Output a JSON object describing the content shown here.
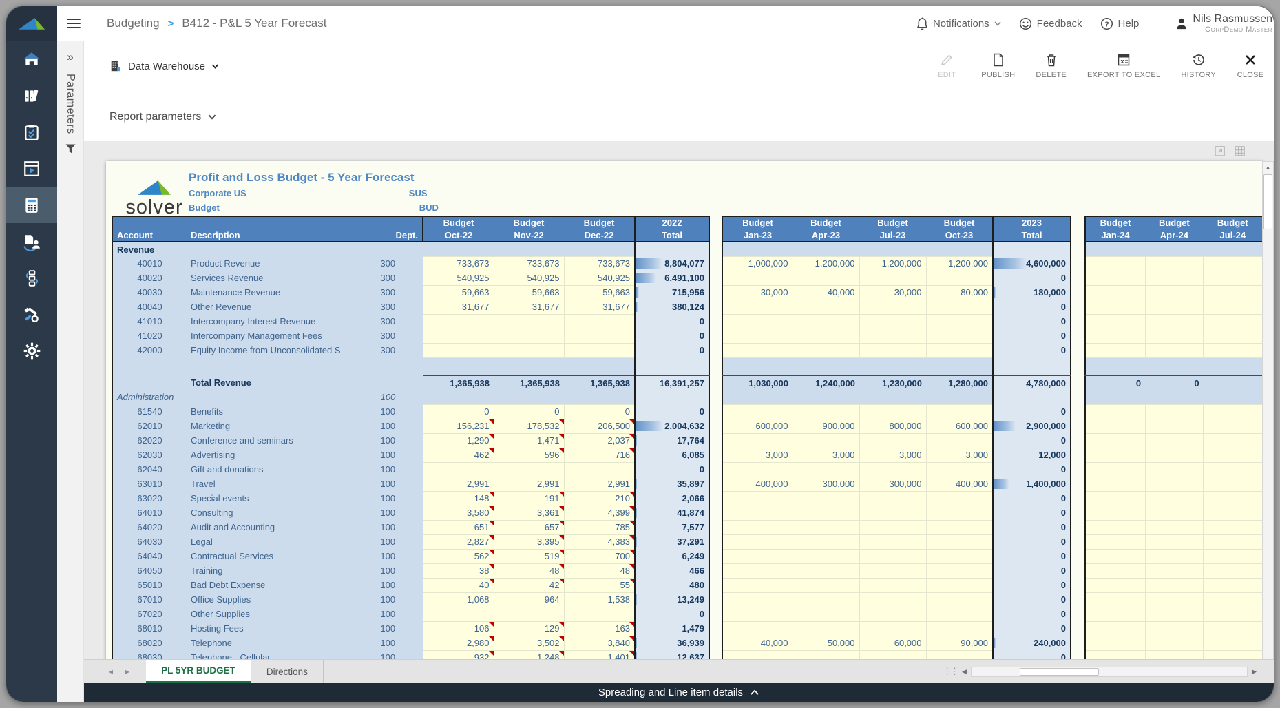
{
  "topbar": {
    "breadcrumb": {
      "section": "Budgeting",
      "separator": ">",
      "page": "B412 - P&L 5 Year Forecast"
    },
    "notifications_label": "Notifications",
    "feedback_label": "Feedback",
    "help_label": "Help",
    "user": {
      "name": "Nils Rasmussen",
      "org": "CorpDemo Master"
    }
  },
  "toolbar": {
    "source_label": "Data Warehouse",
    "actions": [
      {
        "label": "EDIT",
        "icon": "pencil-icon",
        "disabled": true
      },
      {
        "label": "PUBLISH",
        "icon": "publish-page-icon",
        "disabled": false
      },
      {
        "label": "DELETE",
        "icon": "trash-icon",
        "disabled": false
      },
      {
        "label": "EXPORT TO EXCEL",
        "icon": "excel-icon",
        "disabled": false
      },
      {
        "label": "HISTORY",
        "icon": "history-clock-icon",
        "disabled": false
      },
      {
        "label": "CLOSE",
        "icon": "close-x-icon",
        "disabled": false
      }
    ]
  },
  "parameters": {
    "rail_label": "Parameters",
    "expand_glyph": "»",
    "row_label": "Report parameters"
  },
  "sidebar": {
    "items": [
      "home-icon",
      "binders-icon",
      "checklist-icon",
      "report-viewer-icon",
      "calculator-icon",
      "document-user-icon",
      "workflow-icon",
      "tools-icon",
      "settings-gear-icon"
    ],
    "active_index": 4
  },
  "report": {
    "logo_text": "solver",
    "title": "Profit and Loss Budget - 5 Year Forecast",
    "entity_name": "Corporate US",
    "entity_code": "SUS",
    "scenario_name": "Budget",
    "scenario_code": "BUD"
  },
  "sheet_tabs": {
    "active": "PL 5YR BUDGET",
    "other": "Directions"
  },
  "footer": {
    "expander_label": "Spreading and Line item details"
  },
  "table": {
    "left_headers": [
      "Account",
      "Description",
      "Dept."
    ],
    "blocks": [
      {
        "months": [
          [
            "Budget",
            "Oct-22"
          ],
          [
            "Budget",
            "Nov-22"
          ],
          [
            "Budget",
            "Dec-22"
          ]
        ],
        "total": [
          "2022",
          "Total"
        ]
      },
      {
        "months": [
          [
            "Budget",
            "Jan-23"
          ],
          [
            "Budget",
            "Apr-23"
          ],
          [
            "Budget",
            "Jul-23"
          ],
          [
            "Budget",
            "Oct-23"
          ]
        ],
        "total": [
          "2023",
          "Total"
        ]
      },
      {
        "months": [
          [
            "Budget",
            "Jan-24"
          ],
          [
            "Budget",
            "Apr-24"
          ],
          [
            "Budget",
            "Jul-24"
          ]
        ],
        "total": null
      }
    ],
    "rows": [
      {
        "t": "section",
        "label": "Revenue",
        "dept": ""
      },
      {
        "t": "acct",
        "a": "40010",
        "d": "Product Revenue",
        "dept": "300",
        "m22": [
          "733,673",
          "733,673",
          "733,673"
        ],
        "t22": "8,804,077",
        "b22": 36,
        "m23": [
          "1,000,000",
          "1,200,000",
          "1,200,000",
          "1,200,000"
        ],
        "t23": "4,600,000",
        "b23": 42,
        "m24": [
          "",
          "",
          ""
        ]
      },
      {
        "t": "acct",
        "a": "40020",
        "d": "Services Revenue",
        "dept": "300",
        "m22": [
          "540,925",
          "540,925",
          "540,925"
        ],
        "t22": "6,491,100",
        "b22": 27,
        "m23": [
          "",
          "",
          "",
          ""
        ],
        "t23": "0",
        "b23": 0,
        "m24": [
          "",
          "",
          ""
        ]
      },
      {
        "t": "acct",
        "a": "40030",
        "d": "Maintenance Revenue",
        "dept": "300",
        "m22": [
          "59,663",
          "59,663",
          "59,663"
        ],
        "t22": "715,956",
        "b22": 4,
        "m23": [
          "30,000",
          "40,000",
          "30,000",
          "80,000"
        ],
        "t23": "180,000",
        "b23": 2,
        "m24": [
          "",
          "",
          ""
        ]
      },
      {
        "t": "acct",
        "a": "40040",
        "d": "Other Revenue",
        "dept": "300",
        "m22": [
          "31,677",
          "31,677",
          "31,677"
        ],
        "t22": "380,124",
        "b22": 2,
        "m23": [
          "",
          "",
          "",
          ""
        ],
        "t23": "0",
        "b23": 0,
        "m24": [
          "",
          "",
          ""
        ]
      },
      {
        "t": "acct",
        "a": "41010",
        "d": "Intercompany Interest Revenue",
        "dept": "300",
        "m22": [
          "",
          "",
          ""
        ],
        "t22": "0",
        "m23": [
          "",
          "",
          "",
          ""
        ],
        "t23": "0",
        "m24": [
          "",
          "",
          ""
        ]
      },
      {
        "t": "acct",
        "a": "41020",
        "d": "Intercompany Management Fees",
        "dept": "300",
        "m22": [
          "",
          "",
          ""
        ],
        "t22": "0",
        "m23": [
          "",
          "",
          "",
          ""
        ],
        "t23": "0",
        "m24": [
          "",
          "",
          ""
        ]
      },
      {
        "t": "acct",
        "a": "42000",
        "d": "Equity Income from Unconsolidated S",
        "dept": "300",
        "m22": [
          "",
          "",
          ""
        ],
        "t22": "0",
        "m23": [
          "",
          "",
          "",
          ""
        ],
        "t23": "0",
        "m24": [
          "",
          "",
          ""
        ]
      },
      {
        "t": "spacer"
      },
      {
        "t": "total",
        "label": "Total Revenue",
        "m22": [
          "1,365,938",
          "1,365,938",
          "1,365,938"
        ],
        "t22": "16,391,257",
        "m23": [
          "1,030,000",
          "1,240,000",
          "1,230,000",
          "1,280,000"
        ],
        "t23": "4,780,000",
        "m24": [
          "0",
          "0",
          ""
        ]
      },
      {
        "t": "section",
        "label": "Administration",
        "italic": true,
        "dept": "100"
      },
      {
        "t": "acct",
        "a": "61540",
        "d": "Benefits",
        "dept": "100",
        "m22": [
          "0",
          "0",
          "0"
        ],
        "t22": "0",
        "m23": [
          "",
          "",
          "",
          ""
        ],
        "t23": "0",
        "m24": [
          "",
          "",
          ""
        ]
      },
      {
        "t": "acct",
        "a": "62010",
        "d": "Marketing",
        "dept": "100",
        "n": true,
        "m22": [
          "156,231",
          "178,532",
          "206,500"
        ],
        "t22": "2,004,632",
        "b22": 37,
        "m23": [
          "600,000",
          "900,000",
          "800,000",
          "600,000"
        ],
        "t23": "2,900,000",
        "b23": 28,
        "m24": [
          "",
          "",
          ""
        ]
      },
      {
        "t": "acct",
        "a": "62020",
        "d": "Conference and seminars",
        "dept": "100",
        "n": true,
        "m22": [
          "1,290",
          "1,471",
          "2,037"
        ],
        "t22": "17,764",
        "b22": 1,
        "m23": [
          "",
          "",
          "",
          ""
        ],
        "t23": "0",
        "m24": [
          "",
          "",
          ""
        ]
      },
      {
        "t": "acct",
        "a": "62030",
        "d": "Advertising",
        "dept": "100",
        "n": true,
        "m22": [
          "462",
          "596",
          "716"
        ],
        "t22": "6,085",
        "m23": [
          "3,000",
          "3,000",
          "3,000",
          "3,000"
        ],
        "t23": "12,000",
        "m24": [
          "",
          "",
          ""
        ]
      },
      {
        "t": "acct",
        "a": "62040",
        "d": "Gift and donations",
        "dept": "100",
        "m22": [
          "",
          "",
          ""
        ],
        "t22": "0",
        "m23": [
          "",
          "",
          "",
          ""
        ],
        "t23": "0",
        "m24": [
          "",
          "",
          ""
        ]
      },
      {
        "t": "acct",
        "a": "63010",
        "d": "Travel",
        "dept": "100",
        "m22": [
          "2,991",
          "2,991",
          "2,991"
        ],
        "t22": "35,897",
        "b22": 1,
        "m23": [
          "400,000",
          "300,000",
          "300,000",
          "400,000"
        ],
        "t23": "1,400,000",
        "b23": 20,
        "m24": [
          "",
          "",
          ""
        ]
      },
      {
        "t": "acct",
        "a": "63020",
        "d": "Special events",
        "dept": "100",
        "n": true,
        "m22": [
          "148",
          "191",
          "210"
        ],
        "t22": "2,066",
        "m23": [
          "",
          "",
          "",
          ""
        ],
        "t23": "0",
        "m24": [
          "",
          "",
          ""
        ]
      },
      {
        "t": "acct",
        "a": "64010",
        "d": "Consulting",
        "dept": "100",
        "n": true,
        "m22": [
          "3,580",
          "3,361",
          "4,399"
        ],
        "t22": "41,874",
        "b22": 1,
        "m23": [
          "",
          "",
          "",
          ""
        ],
        "t23": "0",
        "m24": [
          "",
          "",
          ""
        ]
      },
      {
        "t": "acct",
        "a": "64020",
        "d": "Audit and Accounting",
        "dept": "100",
        "n": true,
        "m22": [
          "651",
          "657",
          "785"
        ],
        "t22": "7,577",
        "m23": [
          "",
          "",
          "",
          ""
        ],
        "t23": "0",
        "m24": [
          "",
          "",
          ""
        ]
      },
      {
        "t": "acct",
        "a": "64030",
        "d": "Legal",
        "dept": "100",
        "n": true,
        "m22": [
          "2,827",
          "3,395",
          "4,383"
        ],
        "t22": "37,291",
        "b22": 1,
        "m23": [
          "",
          "",
          "",
          ""
        ],
        "t23": "0",
        "m24": [
          "",
          "",
          ""
        ]
      },
      {
        "t": "acct",
        "a": "64040",
        "d": "Contractual Services",
        "dept": "100",
        "n": true,
        "m22": [
          "562",
          "519",
          "700"
        ],
        "t22": "6,249",
        "m23": [
          "",
          "",
          "",
          ""
        ],
        "t23": "0",
        "m24": [
          "",
          "",
          ""
        ]
      },
      {
        "t": "acct",
        "a": "64050",
        "d": "Training",
        "dept": "100",
        "n": true,
        "m22": [
          "38",
          "48",
          "48"
        ],
        "t22": "466",
        "m23": [
          "",
          "",
          "",
          ""
        ],
        "t23": "0",
        "m24": [
          "",
          "",
          ""
        ]
      },
      {
        "t": "acct",
        "a": "65010",
        "d": "Bad Debt Expense",
        "dept": "100",
        "n": true,
        "m22": [
          "40",
          "42",
          "55"
        ],
        "t22": "480",
        "m23": [
          "",
          "",
          "",
          ""
        ],
        "t23": "0",
        "m24": [
          "",
          "",
          ""
        ]
      },
      {
        "t": "acct",
        "a": "67010",
        "d": "Office Supplies",
        "dept": "100",
        "m22": [
          "1,068",
          "964",
          "1,538"
        ],
        "t22": "13,249",
        "b22": 1,
        "m23": [
          "",
          "",
          "",
          ""
        ],
        "t23": "0",
        "m24": [
          "",
          "",
          ""
        ]
      },
      {
        "t": "acct",
        "a": "67020",
        "d": "Other Supplies",
        "dept": "100",
        "m22": [
          "",
          "",
          ""
        ],
        "t22": "0",
        "m23": [
          "",
          "",
          "",
          ""
        ],
        "t23": "0",
        "m24": [
          "",
          "",
          ""
        ]
      },
      {
        "t": "acct",
        "a": "68010",
        "d": "Hosting Fees",
        "dept": "100",
        "n": true,
        "m22": [
          "106",
          "129",
          "163"
        ],
        "t22": "1,479",
        "m23": [
          "",
          "",
          "",
          ""
        ],
        "t23": "0",
        "m24": [
          "",
          "",
          ""
        ]
      },
      {
        "t": "acct",
        "a": "68020",
        "d": "Telephone",
        "dept": "100",
        "n": true,
        "m22": [
          "2,980",
          "3,502",
          "3,840"
        ],
        "t22": "36,939",
        "b22": 1,
        "m23": [
          "40,000",
          "50,000",
          "60,000",
          "90,000"
        ],
        "t23": "240,000",
        "b23": 2,
        "m24": [
          "",
          "",
          ""
        ]
      },
      {
        "t": "acct",
        "a": "68030",
        "d": "Telephone - Cellular",
        "dept": "100",
        "n": true,
        "m22": [
          "932",
          "1,248",
          "1,401"
        ],
        "t22": "12,637",
        "b22": 1,
        "m23": [
          "",
          "",
          "",
          ""
        ],
        "t23": "0",
        "m24": [
          "",
          "",
          ""
        ]
      }
    ]
  }
}
